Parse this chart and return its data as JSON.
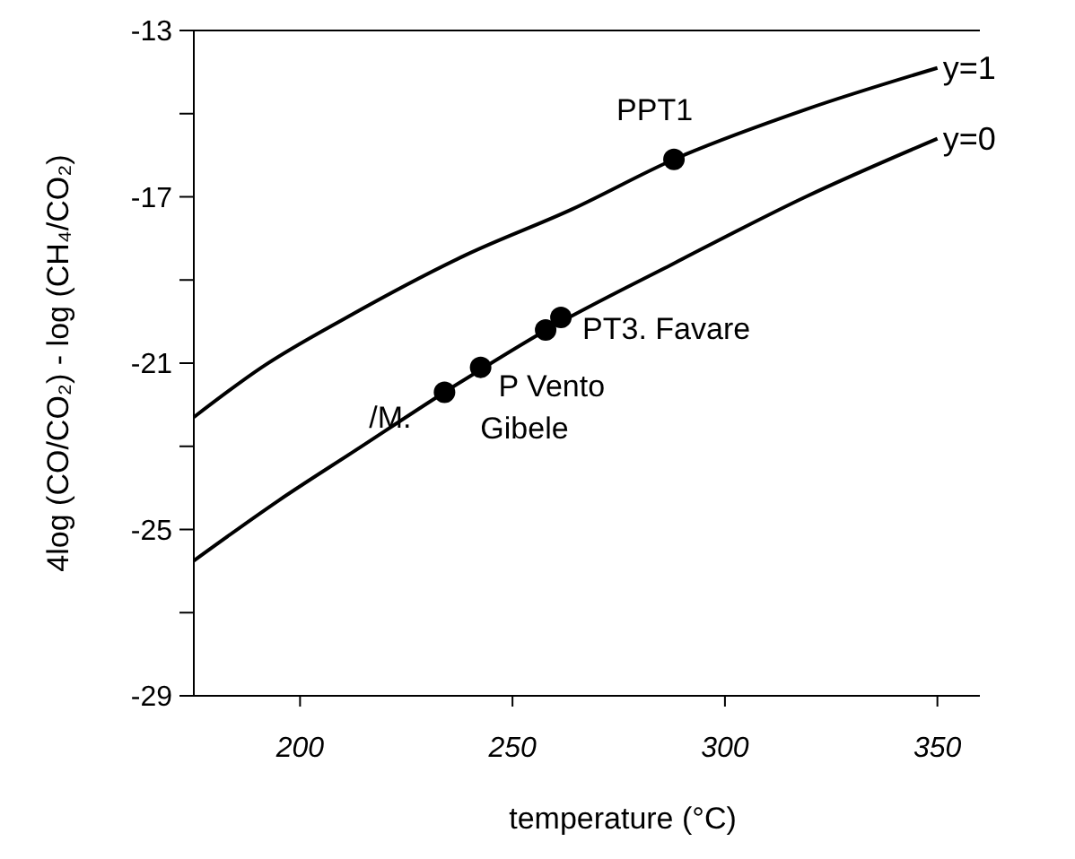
{
  "chart_data": {
    "type": "line",
    "xlabel": "temperature (°C)",
    "ylabel": "4log (CO/CO₂) - log (CH₄/CO₂)",
    "xlim": [
      175,
      360
    ],
    "xticks": [
      200,
      250,
      300,
      350
    ],
    "ylim": [
      -29,
      -13
    ],
    "yticks": [
      -13,
      {
        "value": -15,
        "label": null
      },
      -17,
      {
        "value": -19,
        "label": null
      },
      -21,
      {
        "value": -23,
        "label": null
      },
      -25,
      {
        "value": -27,
        "label": null
      },
      -29
    ],
    "grid": false,
    "marker": "none",
    "line_style": "solid",
    "series": [
      {
        "name": "y=1",
        "color": "#000000",
        "x": [
          175,
          191,
          211,
          239,
          264,
          288,
          319,
          350
        ],
        "values": [
          -22.3,
          -21.1,
          -19.9,
          -18.4,
          -17.3,
          -16.1,
          -14.9,
          -13.9
        ]
      },
      {
        "name": "y=0",
        "color": "#000000",
        "x": [
          175,
          195,
          213,
          234,
          258,
          288,
          319,
          350
        ],
        "values": [
          -25.75,
          -24.3,
          -23.1,
          -21.7,
          -20.2,
          -18.6,
          -17.0,
          -15.6
        ]
      },
      {
        "type": "scatter",
        "marker": "circle",
        "color": "#000000",
        "x": [
          288,
          234,
          242.5,
          257.8,
          261.4
        ],
        "values": [
          -16.1,
          -21.7,
          -21.1,
          -20.2,
          -19.9
        ]
      }
    ],
    "annotations": [
      {
        "text": "PPT1",
        "x": 288,
        "y": -16.1
      },
      {
        "text": "PT3. Favare",
        "x": 261.4,
        "y": -19.9
      },
      {
        "text": "P Vento",
        "x": 242.5,
        "y": -21.1
      },
      {
        "text": "/M.",
        "x": 234,
        "y": -21.7
      },
      {
        "text": "Gibele",
        "x": 234,
        "y": -21.7
      }
    ]
  }
}
